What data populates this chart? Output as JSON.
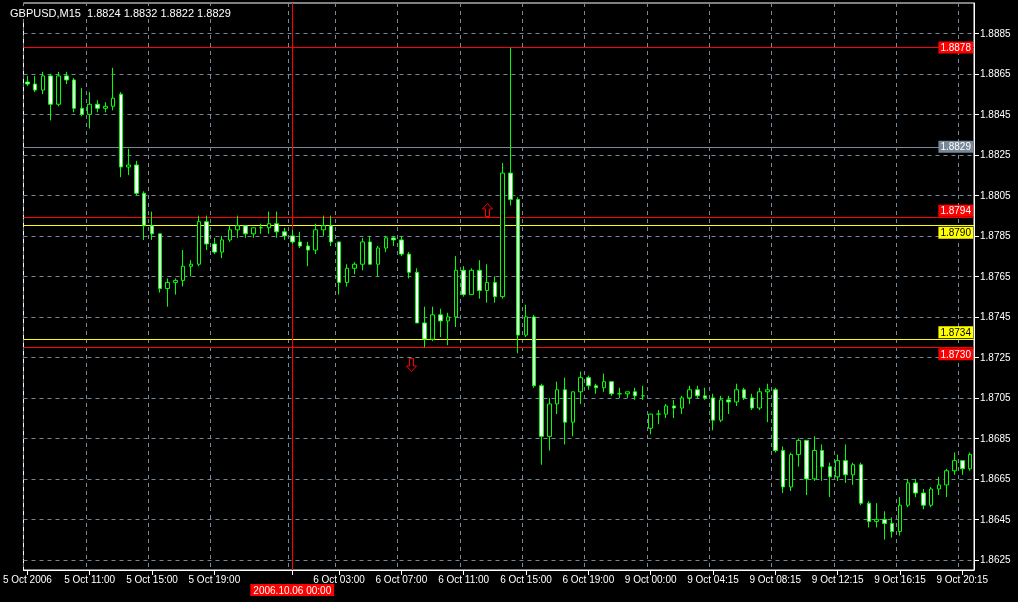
{
  "chart_data": {
    "type": "candlestick",
    "title": "GBPUSD,M15  1.8824 1.8832 1.8822 1.8829",
    "categories": [
      "5 Oct 2006",
      null,
      null,
      null,
      null,
      null,
      null,
      null,
      "5 Oct 11:00",
      null,
      null,
      null,
      null,
      null,
      null,
      null,
      "5 Oct 15:00",
      null,
      null,
      null,
      null,
      null,
      null,
      null,
      "5 Oct 19:00",
      null,
      null,
      null,
      null,
      null,
      null,
      null,
      null,
      null,
      "2006.10.06 00:00",
      null,
      null,
      null,
      null,
      null,
      "6 Oct 03:00",
      null,
      null,
      null,
      null,
      null,
      null,
      null,
      "6 Oct 07:00",
      null,
      null,
      null,
      null,
      null,
      null,
      null,
      "6 Oct 11:00",
      null,
      null,
      null,
      null,
      null,
      null,
      null,
      "6 Oct 15:00",
      null,
      null,
      null,
      null,
      null,
      null,
      null,
      "6 Oct 19:00",
      null,
      null,
      null,
      null,
      null,
      null,
      null,
      "9 Oct 00:00",
      null,
      null,
      null,
      null,
      null,
      null,
      null,
      "9 Oct 04:15",
      null,
      null,
      null,
      null,
      null,
      null,
      null,
      "9 Oct 08:15",
      null,
      null,
      null,
      null,
      null,
      null,
      null,
      "9 Oct 12:15",
      null,
      null,
      null,
      null,
      null,
      null,
      null,
      "9 Oct 16:15",
      null,
      null,
      null,
      null,
      null,
      null,
      null,
      "9 Oct 20:15",
      null
    ],
    "ohlc": [
      [
        1.8861,
        1.8864,
        1.8859,
        1.886
      ],
      [
        1.886,
        1.8864,
        1.8856,
        1.8857
      ],
      [
        1.8857,
        1.8866,
        1.8855,
        1.8864
      ],
      [
        1.8864,
        1.8865,
        1.8842,
        1.885
      ],
      [
        1.885,
        1.8866,
        1.8849,
        1.8864
      ],
      [
        1.8864,
        1.8866,
        1.886,
        1.8862
      ],
      [
        1.8862,
        1.8863,
        1.8846,
        1.8848
      ],
      [
        1.8848,
        1.8858,
        1.8844,
        1.8845
      ],
      [
        1.8845,
        1.8856,
        1.8838,
        1.885
      ],
      [
        1.885,
        1.8852,
        1.8846,
        1.8848
      ],
      [
        1.8848,
        1.8851,
        1.8846,
        1.8849
      ],
      [
        1.8849,
        1.8868,
        1.8847,
        1.8853
      ],
      [
        1.8855,
        1.8856,
        1.8814,
        1.8819
      ],
      [
        1.8819,
        1.8828,
        1.8815,
        1.882
      ],
      [
        1.882,
        1.8822,
        1.8805,
        1.8806
      ],
      [
        1.8806,
        1.8807,
        1.8783,
        1.879
      ],
      [
        1.879,
        1.8797,
        1.8783,
        1.8786
      ],
      [
        1.8786,
        1.8786,
        1.8757,
        1.8759
      ],
      [
        1.8759,
        1.8764,
        1.875,
        1.8762
      ],
      [
        1.8762,
        1.8764,
        1.8756,
        1.8763
      ],
      [
        1.8763,
        1.8778,
        1.876,
        1.877
      ],
      [
        1.877,
        1.8773,
        1.8765,
        1.8771
      ],
      [
        1.8771,
        1.8795,
        1.877,
        1.8792
      ],
      [
        1.8792,
        1.8795,
        1.8778,
        1.8781
      ],
      [
        1.8781,
        1.8784,
        1.8776,
        1.8777
      ],
      [
        1.8777,
        1.8785,
        1.8774,
        1.8783
      ],
      [
        1.8783,
        1.879,
        1.8782,
        1.8788
      ],
      [
        1.8788,
        1.8795,
        1.8784,
        1.879
      ],
      [
        1.879,
        1.879,
        1.8784,
        1.8786
      ],
      [
        1.8786,
        1.8789,
        1.8784,
        1.8789
      ],
      [
        1.8789,
        1.8791,
        1.8786,
        1.8789
      ],
      [
        1.8789,
        1.8797,
        1.8786,
        1.8791
      ],
      [
        1.8791,
        1.8797,
        1.8784,
        1.8787
      ],
      [
        1.8787,
        1.8789,
        1.8783,
        1.8785
      ],
      [
        1.8785,
        1.8788,
        1.8781,
        1.8782
      ],
      [
        1.8782,
        1.8787,
        1.8779,
        1.878
      ],
      [
        1.878,
        1.8782,
        1.877,
        1.8778
      ],
      [
        1.8778,
        1.8791,
        1.8776,
        1.8788
      ],
      [
        1.8788,
        1.8795,
        1.8785,
        1.879
      ],
      [
        1.879,
        1.8795,
        1.878,
        1.8782
      ],
      [
        1.8782,
        1.8782,
        1.8756,
        1.8762
      ],
      [
        1.8762,
        1.8771,
        1.876,
        1.8769
      ],
      [
        1.8769,
        1.8772,
        1.8766,
        1.8771
      ],
      [
        1.8771,
        1.8784,
        1.8768,
        1.8782
      ],
      [
        1.8782,
        1.8785,
        1.8771,
        1.8771
      ],
      [
        1.8771,
        1.878,
        1.8765,
        1.8779
      ],
      [
        1.8779,
        1.8785,
        1.8777,
        1.8784
      ],
      [
        1.8784,
        1.8785,
        1.878,
        1.8783
      ],
      [
        1.8783,
        1.8785,
        1.8775,
        1.8776
      ],
      [
        1.8776,
        1.8777,
        1.8764,
        1.8767
      ],
      [
        1.8767,
        1.8769,
        1.8742,
        1.8742
      ],
      [
        1.8742,
        1.875,
        1.873,
        1.8734
      ],
      [
        1.8734,
        1.875,
        1.8733,
        1.8746
      ],
      [
        1.8746,
        1.8749,
        1.8735,
        1.8743
      ],
      [
        1.8743,
        1.8747,
        1.8731,
        1.8745
      ],
      [
        1.8745,
        1.8775,
        1.874,
        1.8768
      ],
      [
        1.8768,
        1.877,
        1.8755,
        1.8756
      ],
      [
        1.8756,
        1.8769,
        1.8756,
        1.8768
      ],
      [
        1.8768,
        1.8773,
        1.8754,
        1.8758
      ],
      [
        1.8758,
        1.8771,
        1.8752,
        1.8762
      ],
      [
        1.8762,
        1.8765,
        1.8752,
        1.8755
      ],
      [
        1.8755,
        1.8821,
        1.8754,
        1.8816
      ],
      [
        1.8816,
        1.8878,
        1.88,
        1.8803
      ],
      [
        1.8803,
        1.8804,
        1.8727,
        1.8736
      ],
      [
        1.8736,
        1.8751,
        1.8735,
        1.8745
      ],
      [
        1.8745,
        1.8746,
        1.871,
        1.8711
      ],
      [
        1.8711,
        1.8712,
        1.8672,
        1.8686
      ],
      [
        1.8686,
        1.8705,
        1.8679,
        1.8702
      ],
      [
        1.8702,
        1.8713,
        1.8697,
        1.8709
      ],
      [
        1.8709,
        1.8715,
        1.8682,
        1.8693
      ],
      [
        1.8693,
        1.8708,
        1.8686,
        1.8708
      ],
      [
        1.8708,
        1.8718,
        1.8702,
        1.8715
      ],
      [
        1.8715,
        1.8716,
        1.8709,
        1.8711
      ],
      [
        1.8711,
        1.8712,
        1.8707,
        1.871
      ],
      [
        1.871,
        1.8717,
        1.8708,
        1.8713
      ],
      [
        1.8713,
        1.8713,
        1.8706,
        1.8707
      ],
      [
        1.8707,
        1.871,
        1.8705,
        1.8707
      ],
      [
        1.8707,
        1.8708,
        1.8705,
        1.8708
      ],
      [
        1.8708,
        1.871,
        1.8704,
        1.8706
      ],
      [
        1.8706,
        1.8711,
        1.8704,
        1.8706
      ],
      [
        1.869,
        1.8697,
        1.8687,
        1.8697
      ],
      [
        1.8697,
        1.8699,
        1.8692,
        1.8697
      ],
      [
        1.8697,
        1.8702,
        1.8695,
        1.8701
      ],
      [
        1.8701,
        1.8704,
        1.8695,
        1.87
      ],
      [
        1.87,
        1.8706,
        1.8697,
        1.8705
      ],
      [
        1.8705,
        1.8711,
        1.8702,
        1.8709
      ],
      [
        1.8709,
        1.8711,
        1.8705,
        1.8706
      ],
      [
        1.8706,
        1.871,
        1.8704,
        1.8705
      ],
      [
        1.8705,
        1.8707,
        1.8689,
        1.8694
      ],
      [
        1.8694,
        1.8706,
        1.8693,
        1.8704
      ],
      [
        1.8704,
        1.8706,
        1.8697,
        1.8703
      ],
      [
        1.8703,
        1.8712,
        1.8701,
        1.8709
      ],
      [
        1.8709,
        1.871,
        1.8704,
        1.8705
      ],
      [
        1.8705,
        1.8707,
        1.8699,
        1.87
      ],
      [
        1.87,
        1.871,
        1.8699,
        1.8708
      ],
      [
        1.8708,
        1.8712,
        1.8693,
        1.8709
      ],
      [
        1.8709,
        1.871,
        1.8678,
        1.8679
      ],
      [
        1.8679,
        1.8681,
        1.8658,
        1.8661
      ],
      [
        1.8661,
        1.8678,
        1.8659,
        1.8677
      ],
      [
        1.8677,
        1.8685,
        1.8671,
        1.8684
      ],
      [
        1.8684,
        1.8684,
        1.8657,
        1.8665
      ],
      [
        1.8665,
        1.8686,
        1.8664,
        1.8679
      ],
      [
        1.8679,
        1.8682,
        1.8664,
        1.8671
      ],
      [
        1.8671,
        1.8673,
        1.8656,
        1.8666
      ],
      [
        1.8666,
        1.8677,
        1.8664,
        1.8674
      ],
      [
        1.8674,
        1.8682,
        1.8663,
        1.8667
      ],
      [
        1.8667,
        1.8673,
        1.8662,
        1.8672
      ],
      [
        1.8672,
        1.8673,
        1.8652,
        1.8653
      ],
      [
        1.8653,
        1.8654,
        1.8641,
        1.8644
      ],
      [
        1.8644,
        1.8653,
        1.8641,
        1.8645
      ],
      [
        1.8645,
        1.8649,
        1.8635,
        1.8643
      ],
      [
        1.8643,
        1.8646,
        1.8636,
        1.8639
      ],
      [
        1.8639,
        1.8656,
        1.8637,
        1.8652
      ],
      [
        1.8652,
        1.8665,
        1.8651,
        1.8663
      ],
      [
        1.8663,
        1.8665,
        1.8656,
        1.8658
      ],
      [
        1.8658,
        1.866,
        1.865,
        1.8652
      ],
      [
        1.8652,
        1.8661,
        1.8651,
        1.866
      ],
      [
        1.866,
        1.8666,
        1.8657,
        1.8662
      ],
      [
        1.8662,
        1.867,
        1.8656,
        1.8669
      ],
      [
        1.8669,
        1.8678,
        1.8667,
        1.8674
      ],
      [
        1.8674,
        1.8674,
        1.8667,
        1.867
      ],
      [
        1.867,
        1.8678,
        1.8669,
        1.8677
      ]
    ],
    "color": "#00ff00",
    "ylim": [
      1.862,
      1.89
    ],
    "yticks": [
      1.8625,
      1.8645,
      1.8665,
      1.8685,
      1.8705,
      1.8725,
      1.8745,
      1.8765,
      1.8785,
      1.8805,
      1.8825,
      1.8845,
      1.8865,
      1.8885
    ],
    "grid": true,
    "ref_lines": [
      {
        "axis": "y",
        "value": 1.8878,
        "label": "1.8878",
        "color": "#ff0000"
      },
      {
        "axis": "y",
        "value": 1.8829,
        "label": "1.8829",
        "color": "#778899"
      },
      {
        "axis": "y",
        "value": 1.8794,
        "label": "1.8794",
        "color": "#ff0000"
      },
      {
        "axis": "y",
        "value": 1.879,
        "label": "1.8790",
        "color": "#ffff00"
      },
      {
        "axis": "y",
        "value": 1.8734,
        "label": "1.8734",
        "color": "#ffff00"
      },
      {
        "axis": "y",
        "value": 1.873,
        "label": "1.8730",
        "color": "#ff0000"
      },
      {
        "axis": "x",
        "value": "2006.10.06 00:00",
        "color": "#ff0000"
      }
    ]
  }
}
